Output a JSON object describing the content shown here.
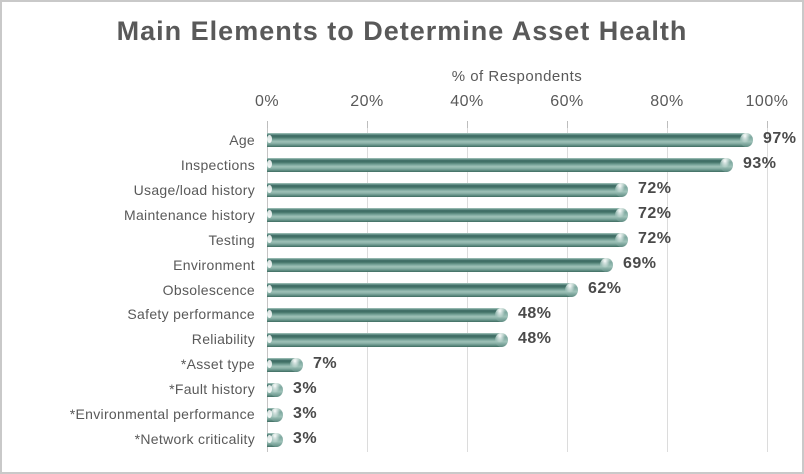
{
  "title": "Main Elements to Determine Asset Health",
  "axis": {
    "title": "% of Respondents",
    "ticks": [
      "0%",
      "20%",
      "40%",
      "60%",
      "80%",
      "100%"
    ]
  },
  "chart_data": {
    "type": "bar",
    "orientation": "horizontal",
    "title": "Main Elements to Determine Asset Health",
    "xlabel": "% of Respondents",
    "xlim": [
      0,
      100
    ],
    "x_tick_labels": [
      "0%",
      "20%",
      "40%",
      "60%",
      "80%",
      "100%"
    ],
    "grid": true,
    "legend": false,
    "categories": [
      "Age",
      "Inspections",
      "Usage/load history",
      "Maintenance history",
      "Testing",
      "Environment",
      "Obsolescence",
      "Safety performance",
      "Reliability",
      "*Asset type",
      "*Fault history",
      "*Environmental performance",
      "*Network criticality"
    ],
    "values": [
      97,
      93,
      72,
      72,
      72,
      69,
      62,
      48,
      48,
      7,
      3,
      3,
      3
    ],
    "data_labels": [
      "97%",
      "93%",
      "72%",
      "72%",
      "72%",
      "69%",
      "62%",
      "48%",
      "48%",
      "7%",
      "3%",
      "3%",
      "3%"
    ]
  },
  "colors": {
    "title_text": "#595959",
    "axis_text": "#595959",
    "value_text": "#4a4a4a",
    "gridline": "#dcdcdc",
    "axis_line": "#c4c4c4",
    "frame_border": "#c9c9c9",
    "background": "#ffffff",
    "bar_main": "#6e9e94",
    "bar_dark": "#3f6f64",
    "bar_highlight": "#9dc0b7"
  }
}
